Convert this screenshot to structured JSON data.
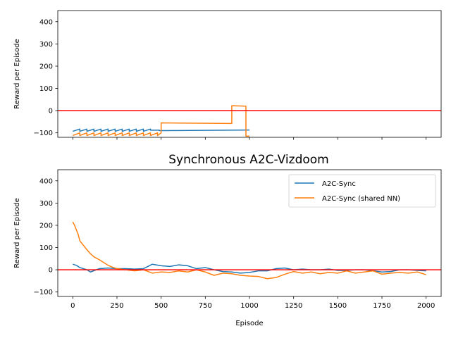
{
  "chart_data": [
    {
      "type": "line",
      "title": "",
      "xlabel": "",
      "ylabel": "Reward per Episode",
      "xlim": [
        -85,
        2085
      ],
      "ylim": [
        -120,
        450
      ],
      "xticks": [
        0,
        250,
        500,
        750,
        1000,
        1250,
        1500,
        1750,
        2000
      ],
      "show_xtick_labels": false,
      "yticks": [
        -100,
        0,
        100,
        200,
        300,
        400
      ],
      "ytick_labels": [
        "−100",
        "0",
        "100",
        "200",
        "300",
        "400"
      ],
      "grid": false,
      "legend": null,
      "hline": {
        "y": 0,
        "color": "#ff0000"
      },
      "series": [
        {
          "color": "#1f77b4",
          "segments": [
            {
              "type": "sawtooth",
              "x_start": 0,
              "x_end": 440,
              "period": 40,
              "low": -93,
              "high": -83
            },
            {
              "type": "step",
              "x": [
                440,
                490,
                490,
                1000
              ],
              "y": [
                -88,
                -88,
                -90,
                -87
              ]
            }
          ]
        },
        {
          "color": "#ff7f0e",
          "segments": [
            {
              "type": "sawtooth",
              "x_start": 0,
              "x_end": 500,
              "period": 40,
              "low": -112,
              "high": -100
            },
            {
              "type": "step",
              "x": [
                500,
                500,
                900,
                900,
                980,
                980,
                1000
              ],
              "y": [
                -100,
                -55,
                -58,
                22,
                20,
                -115,
                -115
              ]
            }
          ]
        }
      ]
    },
    {
      "type": "line",
      "title": "Synchronous A2C-Vizdoom",
      "xlabel": "Episode",
      "ylabel": "Reward per Episode",
      "xlim": [
        -85,
        2085
      ],
      "ylim": [
        -120,
        450
      ],
      "xticks": [
        0,
        250,
        500,
        750,
        1000,
        1250,
        1500,
        1750,
        2000
      ],
      "xtick_labels": [
        "0",
        "250",
        "500",
        "750",
        "1000",
        "1250",
        "1500",
        "1750",
        "2000"
      ],
      "yticks": [
        -100,
        0,
        100,
        200,
        300,
        400
      ],
      "ytick_labels": [
        "−100",
        "0",
        "100",
        "200",
        "300",
        "400"
      ],
      "grid": false,
      "legend": "top-right",
      "hline": {
        "y": 0,
        "color": "#ff0000"
      },
      "series": [
        {
          "name": "A2C-Sync",
          "color": "#1f77b4",
          "x": [
            0,
            20,
            40,
            60,
            80,
            100,
            150,
            200,
            250,
            300,
            350,
            400,
            450,
            500,
            550,
            600,
            650,
            700,
            750,
            800,
            850,
            900,
            950,
            1000,
            1050,
            1100,
            1150,
            1200,
            1250,
            1300,
            1350,
            1400,
            1450,
            1500,
            1550,
            1600,
            1650,
            1700,
            1750,
            1800,
            1850,
            1900,
            1950,
            2000
          ],
          "y": [
            25,
            20,
            10,
            5,
            0,
            -10,
            5,
            8,
            5,
            5,
            3,
            5,
            25,
            18,
            15,
            22,
            18,
            5,
            10,
            0,
            -8,
            -10,
            -15,
            -12,
            -5,
            -5,
            5,
            8,
            0,
            3,
            0,
            0,
            3,
            -3,
            -3,
            0,
            0,
            -5,
            -10,
            -8,
            0,
            0,
            -3,
            -5
          ]
        },
        {
          "name": "A2C-Sync (shared NN)",
          "color": "#ff7f0e",
          "x": [
            0,
            10,
            20,
            30,
            40,
            60,
            80,
            100,
            120,
            150,
            180,
            200,
            230,
            250,
            300,
            350,
            400,
            450,
            500,
            550,
            600,
            650,
            700,
            750,
            800,
            850,
            900,
            950,
            1000,
            1050,
            1100,
            1150,
            1200,
            1250,
            1300,
            1350,
            1400,
            1450,
            1500,
            1550,
            1600,
            1650,
            1700,
            1750,
            1800,
            1850,
            1900,
            1950,
            2000
          ],
          "y": [
            215,
            200,
            180,
            160,
            130,
            110,
            90,
            72,
            58,
            45,
            30,
            20,
            10,
            5,
            0,
            -5,
            0,
            -15,
            -10,
            -12,
            -5,
            -10,
            0,
            -10,
            -25,
            -15,
            -18,
            -25,
            -28,
            -30,
            -40,
            -35,
            -20,
            -8,
            -15,
            -10,
            -18,
            -12,
            -15,
            -5,
            -15,
            -10,
            -5,
            -20,
            -15,
            -12,
            -15,
            -10,
            -22
          ]
        }
      ]
    }
  ]
}
